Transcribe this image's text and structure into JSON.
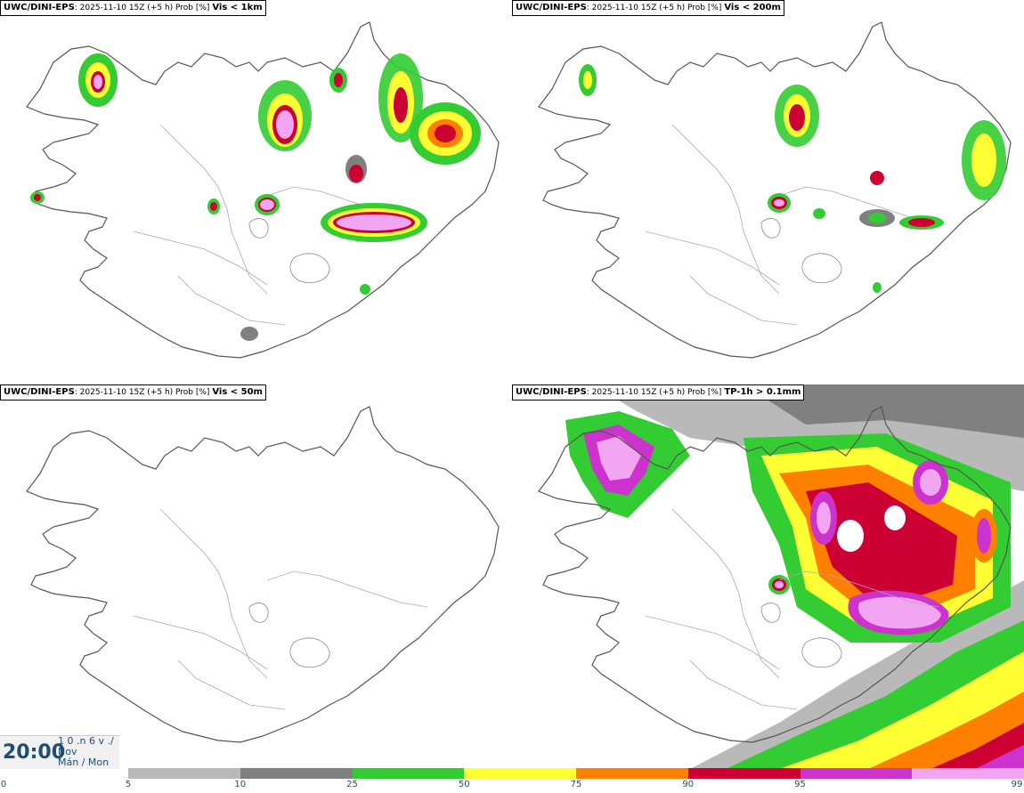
{
  "panels": [
    {
      "source": "UWC/DINI-EPS",
      "meta": ": 2025-11-10 15Z (+5 h) Prob [%]",
      "variable": "Vis < 1km"
    },
    {
      "source": "UWC/DINI-EPS",
      "meta": ": 2025-11-10 15Z (+5 h) Prob [%]",
      "variable": "Vis < 200m"
    },
    {
      "source": "UWC/DINI-EPS",
      "meta": ": 2025-11-10 15Z (+5 h) Prob [%]",
      "variable": "Vis < 50m"
    },
    {
      "source": "UWC/DINI-EPS",
      "meta": ": 2025-11-10 15Z (+5 h) Prob [%]",
      "variable": "TP-1h > 0.1mm"
    }
  ],
  "time": {
    "clock": "20:00",
    "date_line1": "1 0 .n 6 v ./",
    "date_line2": "Nov",
    "date_line3": "Mán / Mon"
  },
  "colorbar": {
    "ticks": [
      "0",
      "5",
      "10",
      "25",
      "50",
      "75",
      "90",
      "95",
      "99"
    ],
    "colors": [
      "#b9b9b9",
      "#808080",
      "#33cc33",
      "#ffff33",
      "#ff7f00",
      "#cc0033",
      "#cc33cc",
      "#f2a6f2"
    ]
  }
}
